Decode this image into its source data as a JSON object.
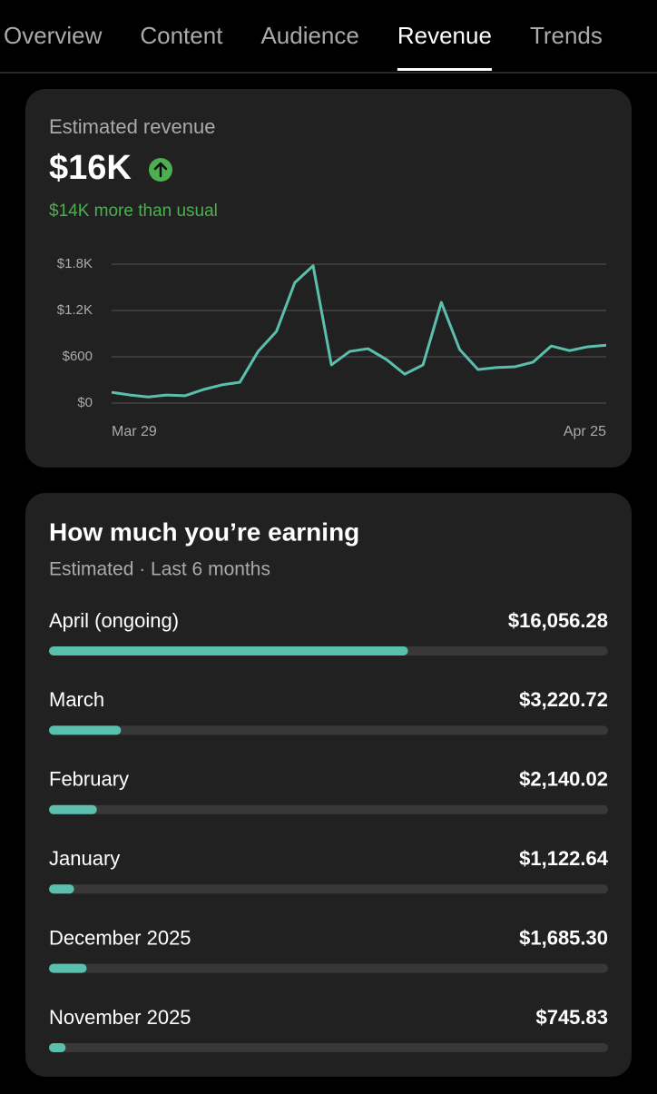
{
  "tabs": [
    {
      "label": "Overview",
      "active": false
    },
    {
      "label": "Content",
      "active": false
    },
    {
      "label": "Audience",
      "active": false
    },
    {
      "label": "Revenue",
      "active": true
    },
    {
      "label": "Trends",
      "active": false
    }
  ],
  "revenue_card": {
    "title": "Estimated revenue",
    "total": "$16K",
    "note": "$14K more than usual"
  },
  "chart_data": [
    {
      "type": "line",
      "categories": [
        "Mar 29",
        null,
        null,
        null,
        null,
        null,
        null,
        null,
        null,
        null,
        null,
        null,
        null,
        null,
        null,
        null,
        null,
        null,
        null,
        null,
        null,
        null,
        null,
        null,
        null,
        null,
        null,
        "Apr 25"
      ],
      "series": [
        {
          "color": "#5bbfae",
          "values": [
            140,
            105,
            80,
            105,
            95,
            175,
            235,
            270,
            670,
            930,
            1560,
            1780,
            495,
            670,
            705,
            565,
            375,
            495,
            1305,
            695,
            435,
            460,
            470,
            530,
            740,
            680,
            730,
            750
          ]
        }
      ],
      "ylim": [
        0,
        1800
      ],
      "yticks": [
        {
          "value": 0,
          "label": "$0"
        },
        {
          "value": 600,
          "label": "$600"
        },
        {
          "value": 1200,
          "label": "$1.2K"
        },
        {
          "value": 1800,
          "label": "$1.8K"
        }
      ],
      "grid": true
    },
    {
      "type": "hbar",
      "title": "How much you’re earning",
      "subtitle": "Estimated · Last 6 months",
      "categories": [
        "April (ongoing)",
        "March",
        "February",
        "January",
        "December 2025",
        "November 2025"
      ],
      "values": [
        16056.28,
        3220.72,
        2140.02,
        1122.64,
        1685.3,
        745.83
      ],
      "value_labels": [
        "$16,056.28",
        "$3,220.72",
        "$2,140.02",
        "$1,122.64",
        "$1,685.30",
        "$745.83"
      ],
      "color": "#5bbfae",
      "xlim": [
        0,
        25000
      ]
    }
  ]
}
